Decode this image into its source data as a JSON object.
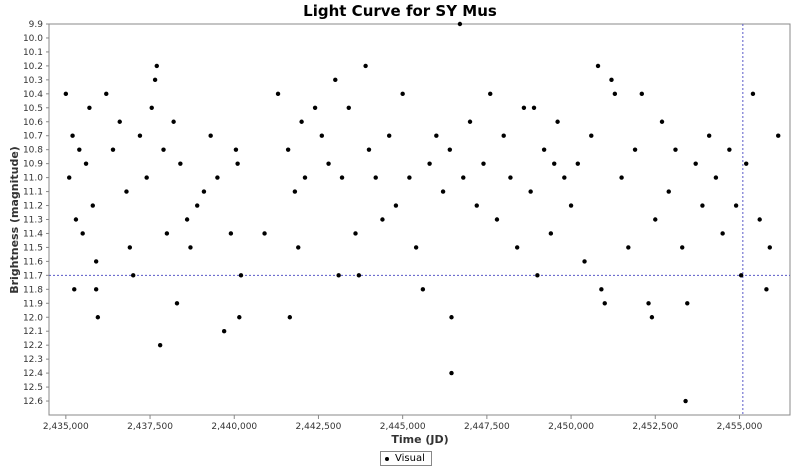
{
  "chart_data": {
    "type": "scatter",
    "title": "Light Curve for SY Mus",
    "xlabel": "Time (JD)",
    "ylabel": "Brightness (magnitude)",
    "xlim": [
      2434500,
      2456500
    ],
    "ylim": [
      9.9,
      12.7
    ],
    "y_inverted": true,
    "x_ticks": [
      2435000,
      2437500,
      2440000,
      2442500,
      2445000,
      2447500,
      2450000,
      2452500,
      2455000
    ],
    "x_tick_labels": [
      "2,435,000",
      "2,437,500",
      "2,440,000",
      "2,442,500",
      "2,445,000",
      "2,447,500",
      "2,450,000",
      "2,452,500",
      "2,455,000"
    ],
    "y_ticks": [
      9.9,
      10.0,
      10.1,
      10.2,
      10.3,
      10.4,
      10.5,
      10.6,
      10.7,
      10.8,
      10.9,
      11.0,
      11.1,
      11.2,
      11.3,
      11.4,
      11.5,
      11.6,
      11.7,
      11.8,
      11.9,
      12.0,
      12.1,
      12.2,
      12.3,
      12.4,
      12.5,
      12.6
    ],
    "y_tick_labels": [
      "9.9",
      "10.0",
      "10.1",
      "10.2",
      "10.3",
      "10.4",
      "10.5",
      "10.6",
      "10.7",
      "10.8",
      "10.9",
      "11.0",
      "11.1",
      "11.2",
      "11.3",
      "11.4",
      "11.5",
      "11.6",
      "11.7",
      "11.8",
      "11.9",
      "12.0",
      "12.1",
      "12.2",
      "12.3",
      "12.4",
      "12.5",
      "12.6"
    ],
    "crosshair": {
      "x": 2455100,
      "y": 11.7
    },
    "grid": false,
    "legend_position": "bottom-center",
    "series": [
      {
        "name": "Visual",
        "color": "#000000",
        "points": [
          [
            2435000,
            10.4
          ],
          [
            2435200,
            10.7
          ],
          [
            2435400,
            10.8
          ],
          [
            2435600,
            10.9
          ],
          [
            2435800,
            11.2
          ],
          [
            2435100,
            11.0
          ],
          [
            2435300,
            11.3
          ],
          [
            2435500,
            11.4
          ],
          [
            2435700,
            10.5
          ],
          [
            2435900,
            11.6
          ],
          [
            2435250,
            11.8
          ],
          [
            2435900,
            11.8
          ],
          [
            2435950,
            12.0
          ],
          [
            2436200,
            10.4
          ],
          [
            2436400,
            10.8
          ],
          [
            2436600,
            10.6
          ],
          [
            2436800,
            11.1
          ],
          [
            2436900,
            11.5
          ],
          [
            2437000,
            11.7
          ],
          [
            2437200,
            10.7
          ],
          [
            2437400,
            11.0
          ],
          [
            2437550,
            10.5
          ],
          [
            2437700,
            10.2
          ],
          [
            2437650,
            10.3
          ],
          [
            2437900,
            10.8
          ],
          [
            2438000,
            11.4
          ],
          [
            2437800,
            12.2
          ],
          [
            2438200,
            10.6
          ],
          [
            2438400,
            10.9
          ],
          [
            2438600,
            11.3
          ],
          [
            2438300,
            11.9
          ],
          [
            2438700,
            11.5
          ],
          [
            2438900,
            11.2
          ],
          [
            2439100,
            11.1
          ],
          [
            2439300,
            10.7
          ],
          [
            2439500,
            11.0
          ],
          [
            2439700,
            12.1
          ],
          [
            2439900,
            11.4
          ],
          [
            2440050,
            10.8
          ],
          [
            2440150,
            12.0
          ],
          [
            2440200,
            11.7
          ],
          [
            2440100,
            10.9
          ],
          [
            2440900,
            11.4
          ],
          [
            2441300,
            10.4
          ],
          [
            2441600,
            10.8
          ],
          [
            2441800,
            11.1
          ],
          [
            2441900,
            11.5
          ],
          [
            2442000,
            10.6
          ],
          [
            2442100,
            11.0
          ],
          [
            2441650,
            12.0
          ],
          [
            2442400,
            10.5
          ],
          [
            2442600,
            10.7
          ],
          [
            2442800,
            10.9
          ],
          [
            2443000,
            10.3
          ],
          [
            2443100,
            11.7
          ],
          [
            2443200,
            11.0
          ],
          [
            2443400,
            10.5
          ],
          [
            2443600,
            11.4
          ],
          [
            2443700,
            11.7
          ],
          [
            2443900,
            10.2
          ],
          [
            2444000,
            10.8
          ],
          [
            2444200,
            11.0
          ],
          [
            2444400,
            11.3
          ],
          [
            2444600,
            10.7
          ],
          [
            2444800,
            11.2
          ],
          [
            2445000,
            10.4
          ],
          [
            2445200,
            11.0
          ],
          [
            2445400,
            11.5
          ],
          [
            2445600,
            11.8
          ],
          [
            2445800,
            10.9
          ],
          [
            2446000,
            10.7
          ],
          [
            2446200,
            11.1
          ],
          [
            2446400,
            10.8
          ],
          [
            2446450,
            12.0
          ],
          [
            2446450,
            12.4
          ],
          [
            2446700,
            9.9
          ],
          [
            2446800,
            11.0
          ],
          [
            2447000,
            10.6
          ],
          [
            2447200,
            11.2
          ],
          [
            2447400,
            10.9
          ],
          [
            2447600,
            10.4
          ],
          [
            2447800,
            11.3
          ],
          [
            2448000,
            10.7
          ],
          [
            2448200,
            11.0
          ],
          [
            2448400,
            11.5
          ],
          [
            2448600,
            10.5
          ],
          [
            2448800,
            11.1
          ],
          [
            2449000,
            11.7
          ],
          [
            2449200,
            10.8
          ],
          [
            2449400,
            11.4
          ],
          [
            2449600,
            10.6
          ],
          [
            2449800,
            11.0
          ],
          [
            2450000,
            11.2
          ],
          [
            2450200,
            10.9
          ],
          [
            2450400,
            11.6
          ],
          [
            2450600,
            10.7
          ],
          [
            2450800,
            10.2
          ],
          [
            2450900,
            11.8
          ],
          [
            2451000,
            11.9
          ],
          [
            2451200,
            10.3
          ],
          [
            2451300,
            10.4
          ],
          [
            2451500,
            11.0
          ],
          [
            2451700,
            11.5
          ],
          [
            2451900,
            10.8
          ],
          [
            2452100,
            10.4
          ],
          [
            2452300,
            11.9
          ],
          [
            2452400,
            12.0
          ],
          [
            2452500,
            11.3
          ],
          [
            2452700,
            10.6
          ],
          [
            2452900,
            11.1
          ],
          [
            2453100,
            10.8
          ],
          [
            2453300,
            11.5
          ],
          [
            2453400,
            12.6
          ],
          [
            2453450,
            11.9
          ],
          [
            2453700,
            10.9
          ],
          [
            2453900,
            11.2
          ],
          [
            2454100,
            10.7
          ],
          [
            2454300,
            11.0
          ],
          [
            2454500,
            11.4
          ],
          [
            2454700,
            10.8
          ],
          [
            2454900,
            11.2
          ],
          [
            2455050,
            11.7
          ],
          [
            2455200,
            10.9
          ],
          [
            2455400,
            10.4
          ],
          [
            2455600,
            11.3
          ],
          [
            2455800,
            11.8
          ],
          [
            2455900,
            11.5
          ],
          [
            2456150,
            10.7
          ],
          [
            2448900,
            10.5
          ],
          [
            2449500,
            10.9
          ]
        ]
      }
    ]
  }
}
